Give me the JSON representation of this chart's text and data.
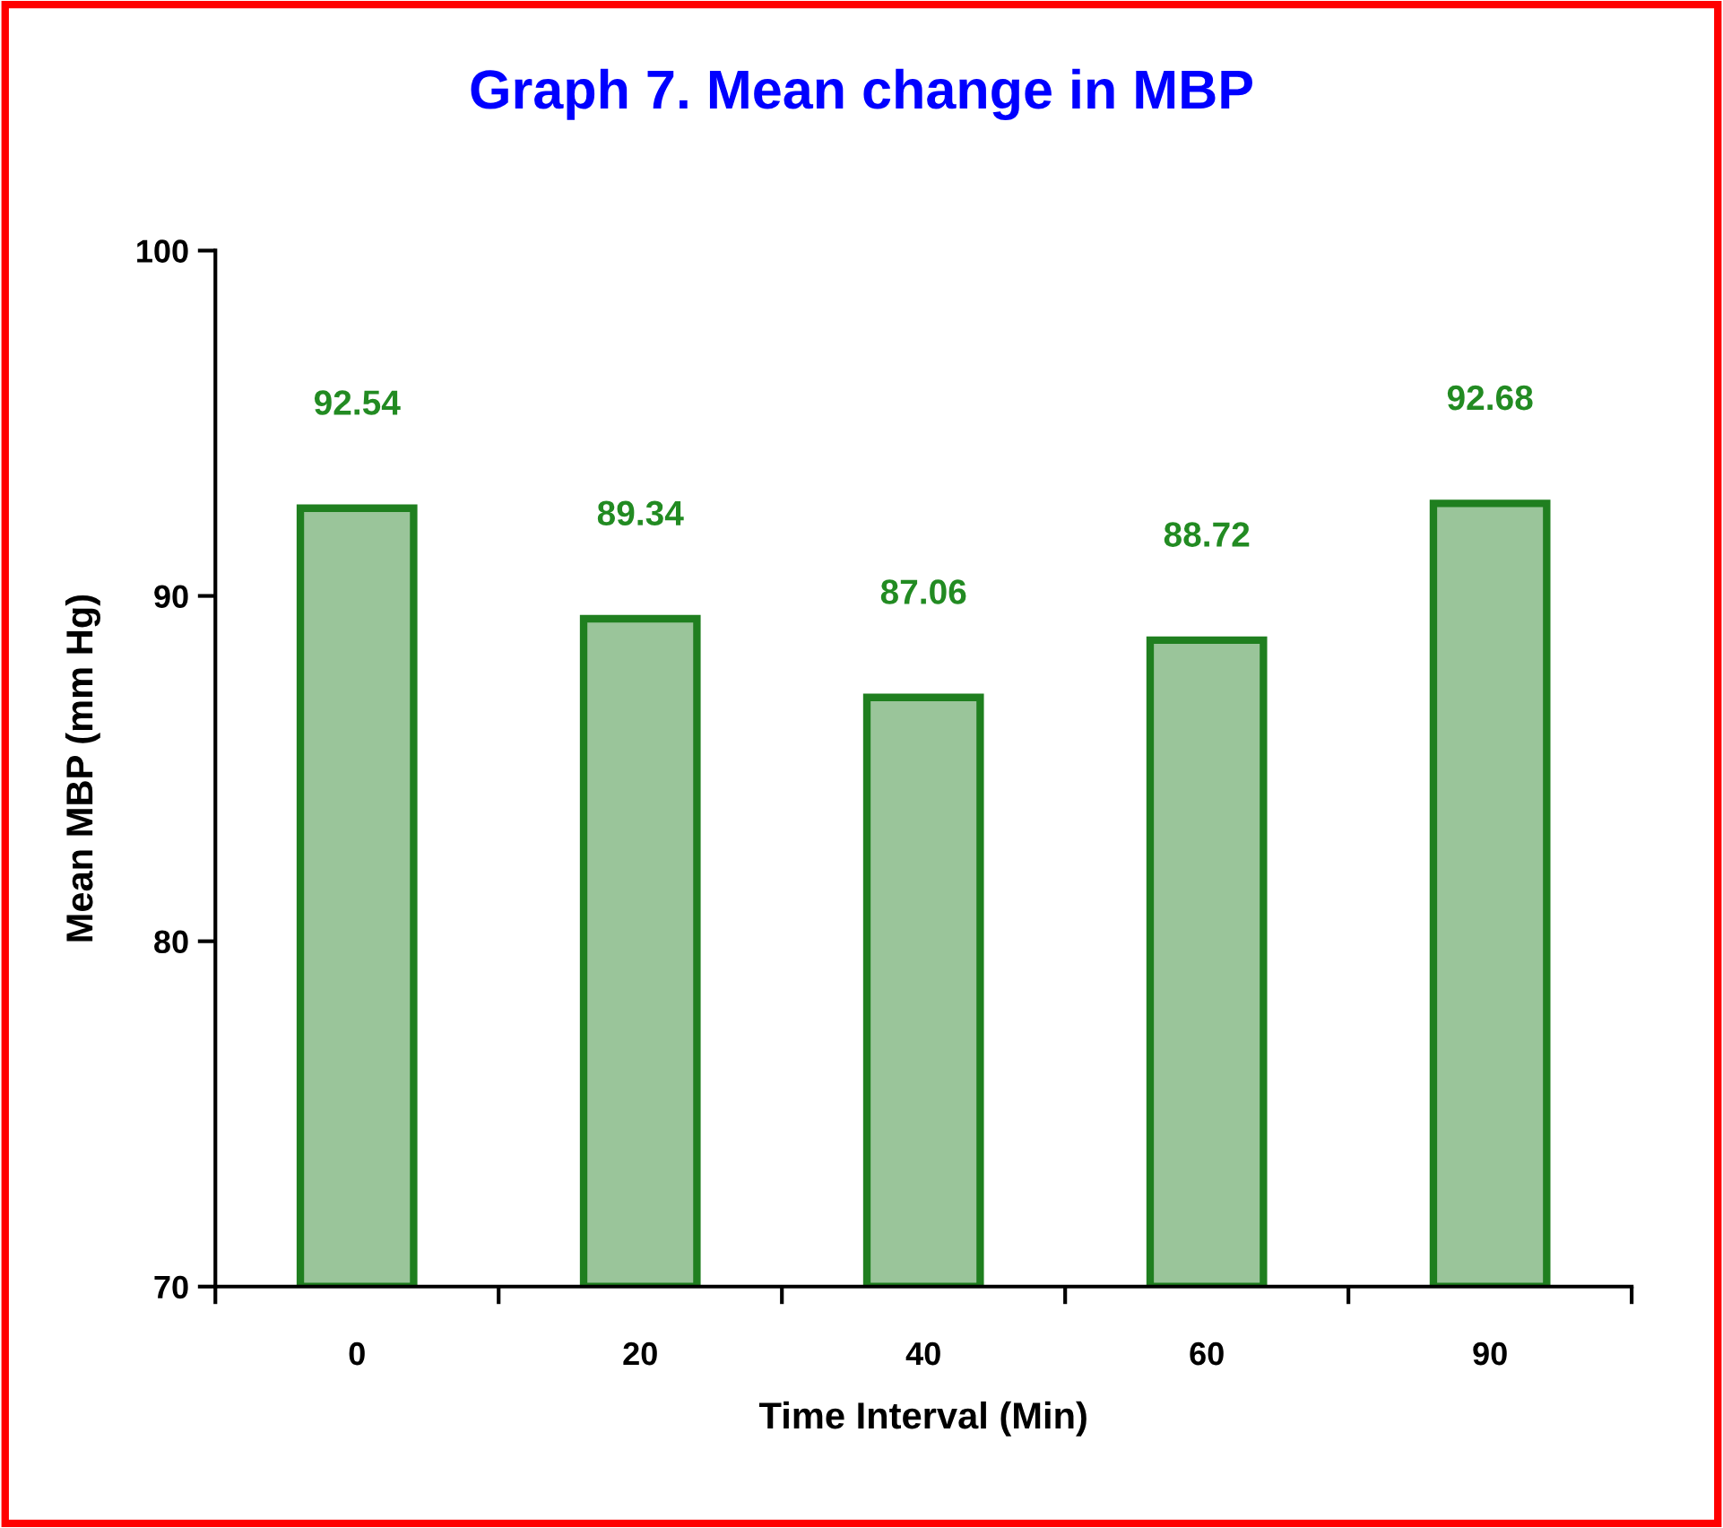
{
  "chart_data": {
    "type": "bar",
    "title": "Graph 7. Mean change in MBP",
    "xlabel": "Time Interval (Min)",
    "ylabel": "Mean MBP (mm Hg)",
    "categories": [
      "0",
      "20",
      "40",
      "60",
      "90"
    ],
    "series": [
      {
        "color": "#1f7f1f",
        "values": [
          92.54,
          89.34,
          87.06,
          88.72,
          92.68
        ]
      }
    ],
    "ylim": [
      70,
      100
    ],
    "yticks": [
      70,
      80,
      90,
      100
    ],
    "grid": false,
    "legend": false,
    "data_labels": true
  }
}
